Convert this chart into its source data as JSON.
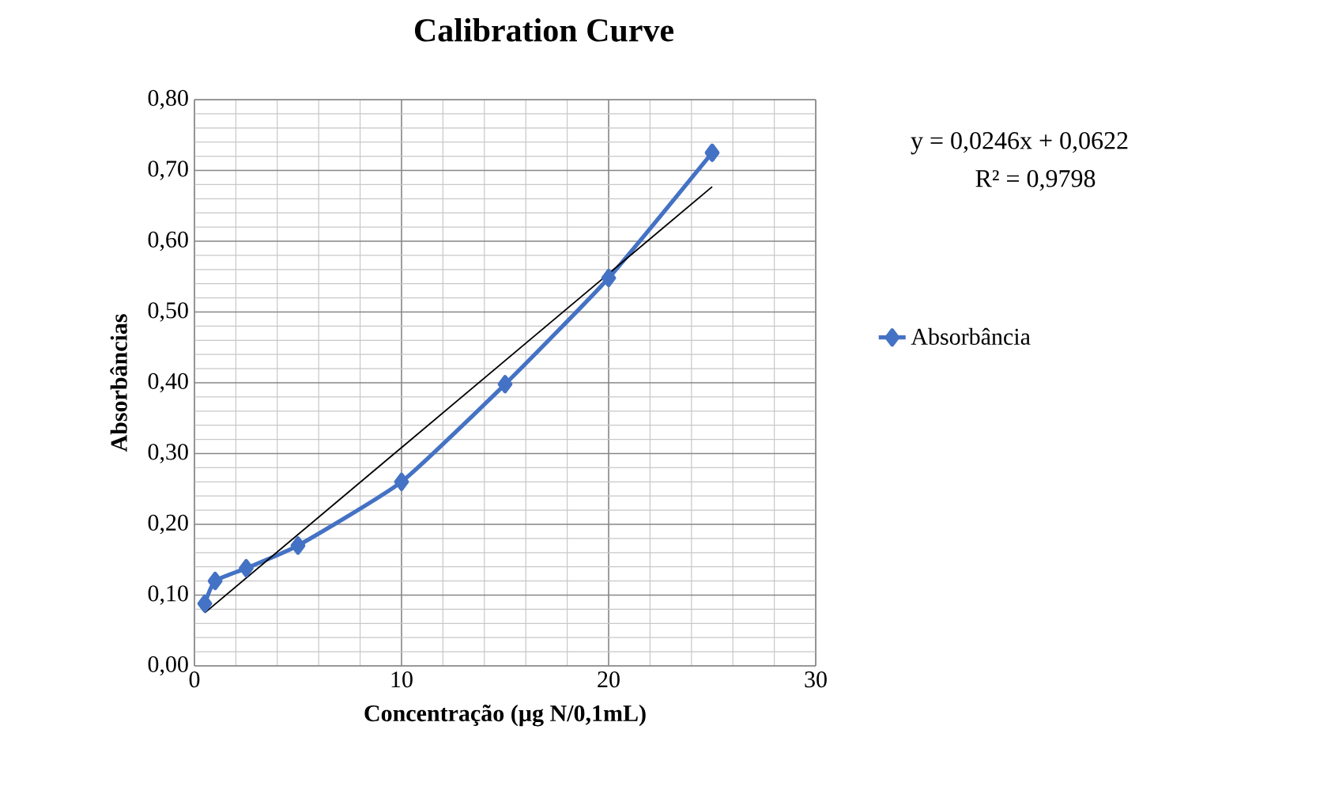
{
  "chart_data": {
    "type": "line",
    "title": "Calibration Curve",
    "xlabel": "Concentração (µg N/0,1mL)",
    "ylabel": "Absorbâncias",
    "annotations": [
      "y = 0,0246x + 0,0622",
      "R² = 0,9798"
    ],
    "xlim": [
      0,
      30
    ],
    "ylim": [
      0,
      0.8
    ],
    "xticks": [
      0,
      10,
      20,
      30
    ],
    "yticks": [
      {
        "value": 0,
        "label": "0,00"
      },
      {
        "value": 0.1,
        "label": "0,10"
      },
      {
        "value": 0.2,
        "label": "0,20"
      },
      {
        "value": 0.3,
        "label": "0,30"
      },
      {
        "value": 0.4,
        "label": "0,40"
      },
      {
        "value": 0.5,
        "label": "0,50"
      },
      {
        "value": 0.6,
        "label": "0,60"
      },
      {
        "value": 0.7,
        "label": "0,70"
      },
      {
        "value": 0.8,
        "label": "0,80"
      }
    ],
    "grid": true,
    "legend": "right",
    "line_style": "solid",
    "series": [
      {
        "name": "Absorbância",
        "color": "#4472c4",
        "marker": "diamond",
        "x": [
          0.5,
          1,
          2.5,
          5,
          10,
          15,
          20,
          25
        ],
        "values": [
          0.088,
          0.12,
          0.138,
          0.17,
          0.26,
          0.398,
          0.548,
          0.725
        ]
      },
      {
        "type": "line",
        "color": "#000000",
        "marker": "none",
        "x": [
          0.5,
          25
        ],
        "values": [
          0.075,
          0.677
        ]
      }
    ]
  }
}
